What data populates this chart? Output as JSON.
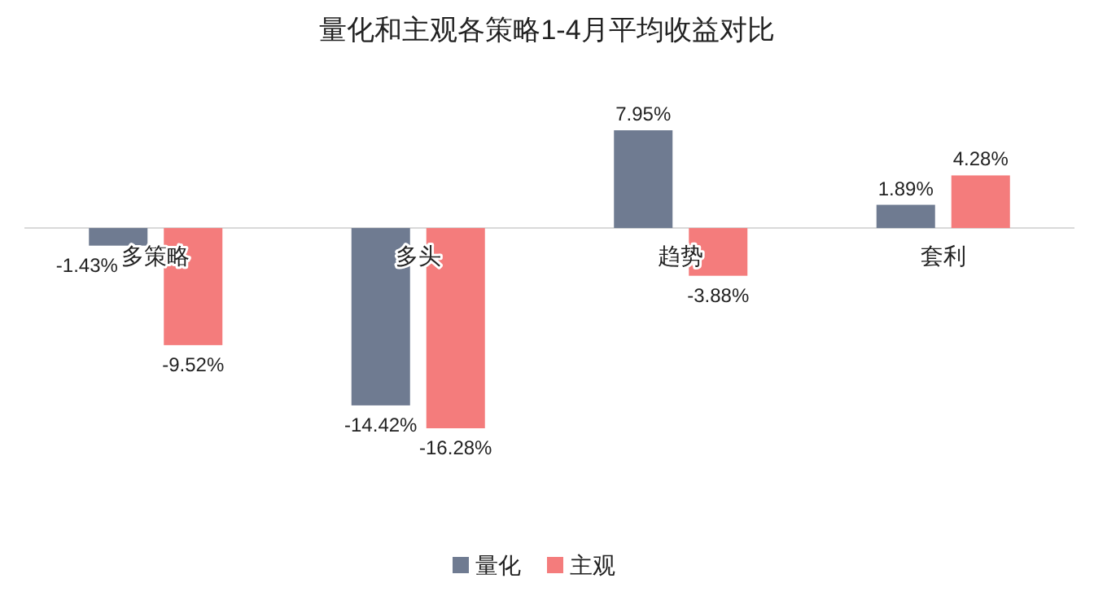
{
  "chart_data": {
    "type": "bar",
    "title": "量化和主观各策略1-4月平均收益对比",
    "categories": [
      "多策略",
      "多头",
      "趋势",
      "套利"
    ],
    "series": [
      {
        "name": "量化",
        "color": "#6f7b91",
        "values": [
          -1.43,
          -14.42,
          7.95,
          1.89
        ],
        "value_labels": [
          "-1.43%",
          "-14.42%",
          "7.95%",
          "1.89%"
        ]
      },
      {
        "name": "主观",
        "color": "#f47c7c",
        "values": [
          -9.52,
          -16.28,
          -3.88,
          4.28
        ],
        "value_labels": [
          "-9.52%",
          "-16.28%",
          "-3.88%",
          "4.28%"
        ]
      }
    ],
    "legend": "bottom"
  }
}
